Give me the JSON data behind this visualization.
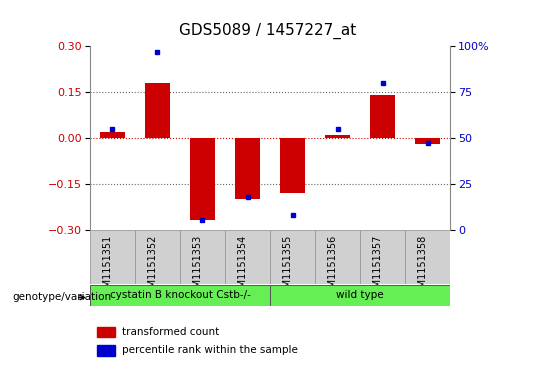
{
  "title": "GDS5089 / 1457227_at",
  "samples": [
    "GSM1151351",
    "GSM1151352",
    "GSM1151353",
    "GSM1151354",
    "GSM1151355",
    "GSM1151356",
    "GSM1151357",
    "GSM1151358"
  ],
  "bar_values": [
    0.02,
    0.18,
    -0.27,
    -0.2,
    -0.18,
    0.01,
    0.14,
    -0.02
  ],
  "percentile_values": [
    55,
    97,
    5,
    18,
    8,
    55,
    80,
    47
  ],
  "bar_color": "#cc0000",
  "dot_color": "#0000cc",
  "ylim_left": [
    -0.3,
    0.3
  ],
  "ylim_right": [
    0,
    100
  ],
  "yticks_left": [
    -0.3,
    -0.15,
    0.0,
    0.15,
    0.3
  ],
  "yticks_right": [
    0,
    25,
    50,
    75,
    100
  ],
  "yticklabels_right": [
    "0",
    "25",
    "50",
    "75",
    "100%"
  ],
  "hline_values": [
    -0.15,
    0.0,
    0.15
  ],
  "group_labels": [
    "cystatin B knockout Cstb-/-",
    "wild type"
  ],
  "group_sizes": [
    4,
    4
  ],
  "group_color": "#66ee55",
  "legend_items": [
    {
      "label": "transformed count",
      "color": "#cc0000"
    },
    {
      "label": "percentile rank within the sample",
      "color": "#0000cc"
    }
  ],
  "genotype_label": "genotype/variation",
  "sample_bg_color": "#d0d0d0",
  "title_fontsize": 11,
  "tick_fontsize": 8,
  "label_fontsize": 7,
  "bar_width": 0.55
}
